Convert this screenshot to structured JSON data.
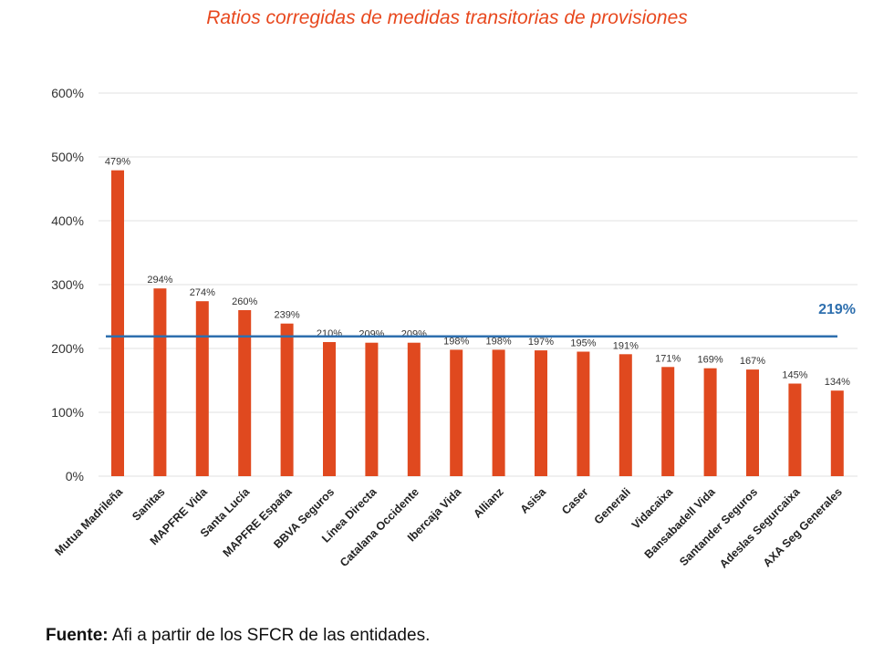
{
  "chart_data": {
    "type": "bar",
    "title": "Ratios corregidas de medidas transitorias de provisiones",
    "categories": [
      "Mutua Madrileña",
      "Sanitas",
      "MAPFRE Vida",
      "Santa Lucía",
      "MAPFRE España",
      "BBVA Seguros",
      "Línea Directa",
      "Catalana Occidente",
      "Ibercaja Vida",
      "Allianz",
      "Asisa",
      "Caser",
      "Generali",
      "Vidacaixa",
      "Bansabadell Vida",
      "Santander Seguros",
      "Adeslas Segurcaixa",
      "AXA Seg Generales"
    ],
    "values": [
      479,
      294,
      274,
      260,
      239,
      210,
      209,
      209,
      198,
      198,
      197,
      195,
      191,
      171,
      169,
      167,
      145,
      134
    ],
    "value_labels": [
      "479%",
      "294%",
      "274%",
      "260%",
      "239%",
      "210%",
      "209%",
      "209%",
      "198%",
      "198%",
      "197%",
      "195%",
      "191%",
      "171%",
      "169%",
      "167%",
      "145%",
      "134%"
    ],
    "ylim": [
      0,
      600
    ],
    "yticks": [
      0,
      100,
      200,
      300,
      400,
      500,
      600
    ],
    "ytick_labels": [
      "0%",
      "100%",
      "200%",
      "300%",
      "400%",
      "500%",
      "600%"
    ],
    "reference_line": {
      "value": 219,
      "label": "219%"
    },
    "grid": true,
    "colors": {
      "bar": "#e0491f",
      "reference_line": "#2e6fae",
      "reference_label": "#2e6fae",
      "title": "#e8481e",
      "grid": "#e2e2e2"
    }
  },
  "source": {
    "label": "Fuente:",
    "text": " Afi a partir de los SFCR de las entidades."
  }
}
